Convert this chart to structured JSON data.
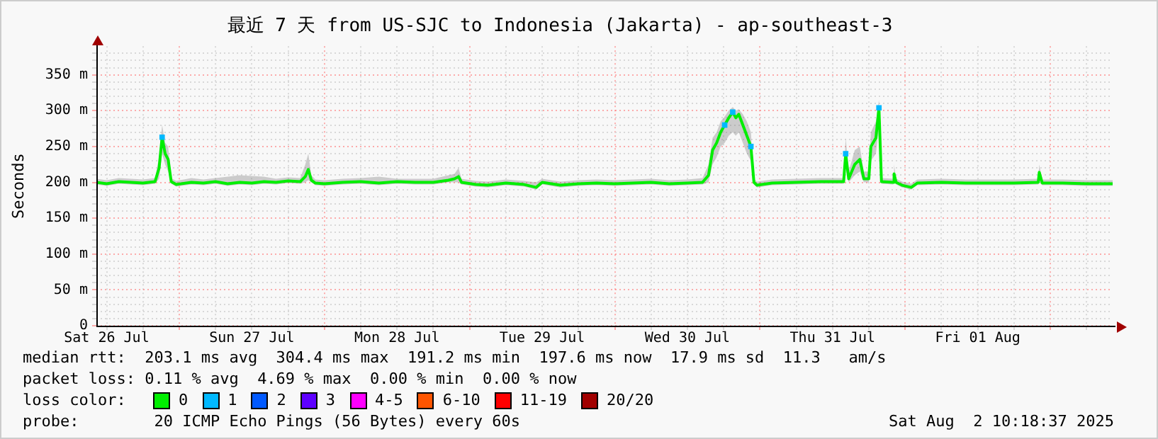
{
  "chart_data": {
    "type": "line",
    "title": "最近 7 天 from US-SJC to Indonesia (Jakarta) - ap-southeast-3",
    "ylabel": "Seconds",
    "legend_title": "loss color:",
    "grid": true,
    "legend": "bottom",
    "xlim": [
      "2025-07-26T10:18",
      "2025-08-02T10:18"
    ],
    "xticks": [
      {
        "value": "2025-07-26T12:00",
        "label": "Sat 26 Jul"
      },
      {
        "value": "2025-07-26T18:00",
        "label": null
      },
      {
        "value": "2025-07-27T00:00",
        "label": null
      },
      {
        "value": "2025-07-27T06:00",
        "label": null
      },
      {
        "value": "2025-07-27T12:00",
        "label": "Sun 27 Jul"
      },
      {
        "value": "2025-07-27T18:00",
        "label": null
      },
      {
        "value": "2025-07-28T00:00",
        "label": null
      },
      {
        "value": "2025-07-28T06:00",
        "label": null
      },
      {
        "value": "2025-07-28T12:00",
        "label": "Mon 28 Jul"
      },
      {
        "value": "2025-07-28T18:00",
        "label": null
      },
      {
        "value": "2025-07-29T00:00",
        "label": null
      },
      {
        "value": "2025-07-29T06:00",
        "label": null
      },
      {
        "value": "2025-07-29T12:00",
        "label": "Tue 29 Jul"
      },
      {
        "value": "2025-07-29T18:00",
        "label": null
      },
      {
        "value": "2025-07-30T00:00",
        "label": null
      },
      {
        "value": "2025-07-30T06:00",
        "label": null
      },
      {
        "value": "2025-07-30T12:00",
        "label": "Wed 30 Jul"
      },
      {
        "value": "2025-07-30T18:00",
        "label": null
      },
      {
        "value": "2025-07-31T00:00",
        "label": null
      },
      {
        "value": "2025-07-31T06:00",
        "label": null
      },
      {
        "value": "2025-07-31T12:00",
        "label": "Thu 31 Jul"
      },
      {
        "value": "2025-07-31T18:00",
        "label": null
      },
      {
        "value": "2025-08-01T00:00",
        "label": null
      },
      {
        "value": "2025-08-01T06:00",
        "label": null
      },
      {
        "value": "2025-08-01T12:00",
        "label": "Fri 01 Aug"
      },
      {
        "value": "2025-08-01T18:00",
        "label": null
      },
      {
        "value": "2025-08-02T00:00",
        "label": null
      },
      {
        "value": "2025-08-02T06:00",
        "label": null
      }
    ],
    "ylim": [
      0,
      390
    ],
    "yticks": [
      {
        "value": 0,
        "label": "0"
      },
      {
        "value": 10,
        "label": null
      },
      {
        "value": 20,
        "label": null
      },
      {
        "value": 30,
        "label": null
      },
      {
        "value": 40,
        "label": null
      },
      {
        "value": 50,
        "label": "50 m"
      },
      {
        "value": 60,
        "label": null
      },
      {
        "value": 70,
        "label": null
      },
      {
        "value": 80,
        "label": null
      },
      {
        "value": 90,
        "label": null
      },
      {
        "value": 100,
        "label": "100 m"
      },
      {
        "value": 110,
        "label": null
      },
      {
        "value": 120,
        "label": null
      },
      {
        "value": 130,
        "label": null
      },
      {
        "value": 140,
        "label": null
      },
      {
        "value": 150,
        "label": "150 m"
      },
      {
        "value": 160,
        "label": null
      },
      {
        "value": 170,
        "label": null
      },
      {
        "value": 180,
        "label": null
      },
      {
        "value": 190,
        "label": null
      },
      {
        "value": 200,
        "label": "200 m"
      },
      {
        "value": 210,
        "label": null
      },
      {
        "value": 220,
        "label": null
      },
      {
        "value": 230,
        "label": null
      },
      {
        "value": 240,
        "label": null
      },
      {
        "value": 250,
        "label": "250 m"
      },
      {
        "value": 260,
        "label": null
      },
      {
        "value": 270,
        "label": null
      },
      {
        "value": 280,
        "label": null
      },
      {
        "value": 290,
        "label": null
      },
      {
        "value": 300,
        "label": "300 m"
      },
      {
        "value": 310,
        "label": null
      },
      {
        "value": 320,
        "label": null
      },
      {
        "value": 330,
        "label": null
      },
      {
        "value": 340,
        "label": null
      },
      {
        "value": 350,
        "label": "350 m"
      },
      {
        "value": 360,
        "label": null
      },
      {
        "value": 370,
        "label": null
      },
      {
        "value": 380,
        "label": null
      }
    ],
    "x": [
      "2025-07-26T10:18",
      "2025-07-26T12:00",
      "2025-07-26T14:00",
      "2025-07-26T16:00",
      "2025-07-26T18:00",
      "2025-07-26T20:00",
      "2025-07-26T20:40",
      "2025-07-26T21:10",
      "2025-07-26T21:40",
      "2025-07-26T22:10",
      "2025-07-26T22:40",
      "2025-07-26T23:30",
      "2025-07-27T02:00",
      "2025-07-27T04:00",
      "2025-07-27T06:00",
      "2025-07-27T08:00",
      "2025-07-27T10:00",
      "2025-07-27T12:00",
      "2025-07-27T14:00",
      "2025-07-27T16:00",
      "2025-07-27T18:00",
      "2025-07-27T20:00",
      "2025-07-27T20:50",
      "2025-07-27T21:20",
      "2025-07-27T21:50",
      "2025-07-27T22:30",
      "2025-07-28T00:00",
      "2025-07-28T03:00",
      "2025-07-28T06:00",
      "2025-07-28T09:00",
      "2025-07-28T12:00",
      "2025-07-28T15:00",
      "2025-07-28T18:00",
      "2025-07-28T20:30",
      "2025-07-28T21:30",
      "2025-07-28T22:10",
      "2025-07-28T22:40",
      "2025-07-29T01:00",
      "2025-07-29T03:00",
      "2025-07-29T06:00",
      "2025-07-29T09:00",
      "2025-07-29T11:00",
      "2025-07-29T12:00",
      "2025-07-29T15:00",
      "2025-07-29T18:00",
      "2025-07-29T21:00",
      "2025-07-30T00:00",
      "2025-07-30T03:00",
      "2025-07-30T06:00",
      "2025-07-30T09:00",
      "2025-07-30T12:00",
      "2025-07-30T14:30",
      "2025-07-30T15:30",
      "2025-07-30T16:10",
      "2025-07-30T16:50",
      "2025-07-30T17:30",
      "2025-07-30T18:10",
      "2025-07-30T18:50",
      "2025-07-30T19:30",
      "2025-07-30T20:00",
      "2025-07-30T20:30",
      "2025-07-30T21:10",
      "2025-07-30T21:50",
      "2025-07-30T22:30",
      "2025-07-30T23:00",
      "2025-07-30T23:30",
      "2025-07-31T02:00",
      "2025-07-31T06:00",
      "2025-07-31T10:00",
      "2025-07-31T13:50",
      "2025-07-31T14:10",
      "2025-07-31T14:40",
      "2025-07-31T15:40",
      "2025-07-31T16:30",
      "2025-07-31T17:10",
      "2025-07-31T18:00",
      "2025-07-31T18:20",
      "2025-07-31T19:10",
      "2025-07-31T19:40",
      "2025-07-31T20:05",
      "2025-07-31T22:00",
      "2025-07-31T22:10",
      "2025-07-31T22:30",
      "2025-07-31T23:30",
      "2025-08-01T01:00",
      "2025-08-01T02:00",
      "2025-08-01T06:00",
      "2025-08-01T10:00",
      "2025-08-01T14:00",
      "2025-08-01T18:00",
      "2025-08-01T22:00",
      "2025-08-01T22:10",
      "2025-08-01T22:40",
      "2025-08-02T02:00",
      "2025-08-02T06:00",
      "2025-08-02T10:18"
    ],
    "series": [
      {
        "name": "0",
        "color": "#00ee00",
        "marker": "none",
        "values": [
          200,
          198,
          201,
          200,
          199,
          201,
          220,
          263,
          240,
          232,
          201,
          197,
          200,
          199,
          201,
          198,
          200,
          199,
          201,
          200,
          202,
          201,
          208,
          218,
          203,
          199,
          198,
          200,
          201,
          199,
          201,
          200,
          200,
          203,
          205,
          208,
          200,
          197,
          196,
          199,
          197,
          193,
          200,
          196,
          198,
          199,
          198,
          199,
          200,
          198,
          199,
          200,
          210,
          245,
          255,
          270,
          280,
          290,
          298,
          290,
          295,
          280,
          265,
          250,
          200,
          196,
          199,
          200,
          201,
          201,
          240,
          205,
          225,
          232,
          205,
          205,
          250,
          262,
          304,
          201,
          200,
          212,
          200,
          196,
          193,
          199,
          200,
          199,
          199,
          199,
          200,
          214,
          199,
          199,
          198,
          198
        ],
        "lower": [
          197,
          195,
          198,
          197,
          196,
          198,
          205,
          240,
          225,
          215,
          198,
          194,
          197,
          196,
          198,
          195,
          197,
          196,
          198,
          197,
          199,
          198,
          200,
          203,
          200,
          196,
          195,
          197,
          198,
          196,
          198,
          197,
          197,
          200,
          200,
          200,
          197,
          194,
          193,
          196,
          194,
          190,
          197,
          193,
          195,
          196,
          195,
          196,
          197,
          195,
          196,
          197,
          200,
          225,
          235,
          250,
          255,
          265,
          270,
          265,
          270,
          255,
          240,
          230,
          197,
          193,
          196,
          197,
          198,
          198,
          220,
          200,
          210,
          215,
          200,
          200,
          230,
          240,
          280,
          198,
          197,
          200,
          197,
          193,
          190,
          196,
          197,
          196,
          196,
          196,
          197,
          200,
          196,
          196,
          195,
          195
        ],
        "upper": [
          205,
          203,
          206,
          205,
          204,
          206,
          235,
          280,
          255,
          250,
          206,
          202,
          206,
          204,
          206,
          208,
          210,
          209,
          208,
          205,
          207,
          206,
          225,
          240,
          210,
          204,
          203,
          205,
          206,
          208,
          205,
          205,
          205,
          210,
          212,
          220,
          205,
          202,
          201,
          204,
          202,
          200,
          205,
          201,
          203,
          204,
          203,
          204,
          205,
          203,
          204,
          206,
          225,
          262,
          270,
          285,
          292,
          300,
          305,
          300,
          302,
          295,
          285,
          270,
          205,
          201,
          204,
          205,
          206,
          206,
          262,
          215,
          245,
          250,
          215,
          215,
          270,
          285,
          315,
          206,
          205,
          225,
          205,
          201,
          198,
          204,
          205,
          204,
          204,
          204,
          205,
          225,
          204,
          204,
          203,
          203
        ]
      },
      {
        "name": "1",
        "type": "scatter",
        "marker": "square",
        "color": "#00b8ff",
        "x": [
          "2025-07-26T21:10",
          "2025-07-30T18:10",
          "2025-07-30T19:30",
          "2025-07-30T22:30",
          "2025-07-31T14:10",
          "2025-07-31T19:40"
        ],
        "values": [
          263,
          280,
          298,
          250,
          240,
          304
        ]
      },
      {
        "name": "2",
        "type": "scatter",
        "color": "#0059ff",
        "values": [
          null,
          null,
          null,
          null,
          null,
          null,
          null,
          null,
          null,
          null,
          null,
          null,
          null,
          null,
          null,
          null,
          null,
          null,
          null,
          null,
          null,
          null,
          null,
          null,
          null,
          null,
          null,
          null,
          null,
          null,
          null,
          null,
          null,
          null,
          null,
          null,
          null,
          null,
          null,
          null,
          null,
          null,
          null,
          null,
          null,
          null,
          null,
          null,
          null,
          null,
          null,
          null,
          null,
          null,
          null,
          null,
          null,
          null,
          null,
          null,
          null,
          null,
          null,
          null,
          null,
          null,
          null,
          null,
          null,
          null,
          null,
          null,
          null,
          null,
          null,
          null,
          null,
          null,
          null,
          null,
          null,
          null,
          null,
          null,
          null,
          null,
          null,
          null,
          null,
          null,
          null,
          null,
          null,
          null,
          null,
          null
        ]
      },
      {
        "name": "3",
        "type": "scatter",
        "color": "#5e00ff",
        "values": [
          null,
          null,
          null,
          null,
          null,
          null,
          null,
          null,
          null,
          null,
          null,
          null,
          null,
          null,
          null,
          null,
          null,
          null,
          null,
          null,
          null,
          null,
          null,
          null,
          null,
          null,
          null,
          null,
          null,
          null,
          null,
          null,
          null,
          null,
          null,
          null,
          null,
          null,
          null,
          null,
          null,
          null,
          null,
          null,
          null,
          null,
          null,
          null,
          null,
          null,
          null,
          null,
          null,
          null,
          null,
          null,
          null,
          null,
          null,
          null,
          null,
          null,
          null,
          null,
          null,
          null,
          null,
          null,
          null,
          null,
          null,
          null,
          null,
          null,
          null,
          null,
          null,
          null,
          null,
          null,
          null,
          null,
          null,
          null,
          null,
          null,
          null,
          null,
          null,
          null,
          null,
          null,
          null,
          null,
          null,
          null
        ]
      },
      {
        "name": "4-5",
        "type": "scatter",
        "color": "#ff00ff",
        "values": [
          null,
          null,
          null,
          null,
          null,
          null,
          null,
          null,
          null,
          null,
          null,
          null,
          null,
          null,
          null,
          null,
          null,
          null,
          null,
          null,
          null,
          null,
          null,
          null,
          null,
          null,
          null,
          null,
          null,
          null,
          null,
          null,
          null,
          null,
          null,
          null,
          null,
          null,
          null,
          null,
          null,
          null,
          null,
          null,
          null,
          null,
          null,
          null,
          null,
          null,
          null,
          null,
          null,
          null,
          null,
          null,
          null,
          null,
          null,
          null,
          null,
          null,
          null,
          null,
          null,
          null,
          null,
          null,
          null,
          null,
          null,
          null,
          null,
          null,
          null,
          null,
          null,
          null,
          null,
          null,
          null,
          null,
          null,
          null,
          null,
          null,
          null,
          null,
          null,
          null,
          null,
          null,
          null,
          null,
          null,
          null
        ]
      },
      {
        "name": "6-10",
        "type": "scatter",
        "color": "#ff5500",
        "values": [
          null,
          null,
          null,
          null,
          null,
          null,
          null,
          null,
          null,
          null,
          null,
          null,
          null,
          null,
          null,
          null,
          null,
          null,
          null,
          null,
          null,
          null,
          null,
          null,
          null,
          null,
          null,
          null,
          null,
          null,
          null,
          null,
          null,
          null,
          null,
          null,
          null,
          null,
          null,
          null,
          null,
          null,
          null,
          null,
          null,
          null,
          null,
          null,
          null,
          null,
          null,
          null,
          null,
          null,
          null,
          null,
          null,
          null,
          null,
          null,
          null,
          null,
          null,
          null,
          null,
          null,
          null,
          null,
          null,
          null,
          null,
          null,
          null,
          null,
          null,
          null,
          null,
          null,
          null,
          null,
          null,
          null,
          null,
          null,
          null,
          null,
          null,
          null,
          null,
          null,
          null,
          null,
          null,
          null,
          null,
          null
        ]
      },
      {
        "name": "11-19",
        "type": "scatter",
        "color": "#ff0000",
        "values": [
          null,
          null,
          null,
          null,
          null,
          null,
          null,
          null,
          null,
          null,
          null,
          null,
          null,
          null,
          null,
          null,
          null,
          null,
          null,
          null,
          null,
          null,
          null,
          null,
          null,
          null,
          null,
          null,
          null,
          null,
          null,
          null,
          null,
          null,
          null,
          null,
          null,
          null,
          null,
          null,
          null,
          null,
          null,
          null,
          null,
          null,
          null,
          null,
          null,
          null,
          null,
          null,
          null,
          null,
          null,
          null,
          null,
          null,
          null,
          null,
          null,
          null,
          null,
          null,
          null,
          null,
          null,
          null,
          null,
          null,
          null,
          null,
          null,
          null,
          null,
          null,
          null,
          null,
          null,
          null,
          null,
          null,
          null,
          null,
          null,
          null,
          null,
          null,
          null,
          null,
          null,
          null,
          null,
          null,
          null,
          null
        ]
      },
      {
        "name": "20/20",
        "type": "scatter",
        "color": "#a10000",
        "values": [
          null,
          null,
          null,
          null,
          null,
          null,
          null,
          null,
          null,
          null,
          null,
          null,
          null,
          null,
          null,
          null,
          null,
          null,
          null,
          null,
          null,
          null,
          null,
          null,
          null,
          null,
          null,
          null,
          null,
          null,
          null,
          null,
          null,
          null,
          null,
          null,
          null,
          null,
          null,
          null,
          null,
          null,
          null,
          null,
          null,
          null,
          null,
          null,
          null,
          null,
          null,
          null,
          null,
          null,
          null,
          null,
          null,
          null,
          null,
          null,
          null,
          null,
          null,
          null,
          null,
          null,
          null,
          null,
          null,
          null,
          null,
          null,
          null,
          null,
          null,
          null,
          null,
          null,
          null,
          null,
          null,
          null,
          null,
          null,
          null,
          null,
          null,
          null,
          null,
          null,
          null,
          null,
          null,
          null,
          null,
          null
        ]
      }
    ],
    "annotations": [
      "median rtt:  203.1 ms avg  304.4 ms max  191.2 ms min  197.6 ms now  17.9 ms sd  11.3   am/s",
      "packet loss: 0.11 % avg  4.69 % max  0.00 % min  0.00 % now",
      "probe:        20 ICMP Echo Pings (56 Bytes) every 60s",
      "Sat Aug  2 10:18:37 2025"
    ]
  }
}
